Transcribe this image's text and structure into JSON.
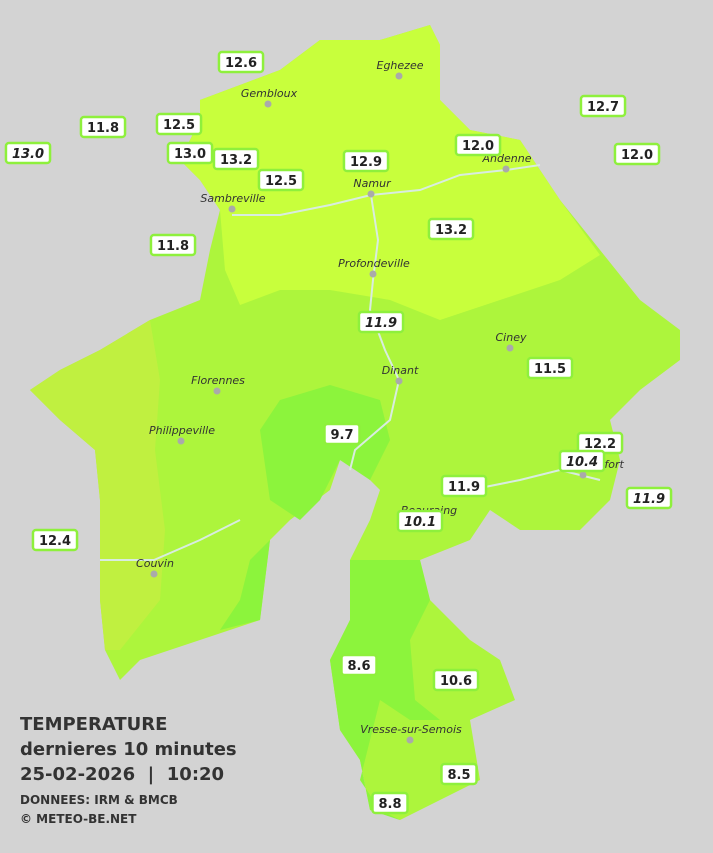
{
  "title": {
    "line1": "TEMPERATURE",
    "line2": "dernieres 10 minutes",
    "line3": "25-02-2026  |  10:20",
    "source": "DONNEES: IRM & BMCB",
    "copyright": "© METEO-BE.NET"
  },
  "cities": [
    "Eghezee",
    "Gembloux",
    "Andenne",
    "Namur",
    "Sambreville",
    "Profondeville",
    "Ciney",
    "Dinant",
    "Florennes",
    "Philippeville",
    "Rochefort",
    "Beauraing",
    "Couvin",
    "Vresse-sur-Semois"
  ],
  "stations": [
    {
      "label": "12.6",
      "italic": false
    },
    {
      "label": "11.8",
      "italic": false
    },
    {
      "label": "12.5",
      "italic": false
    },
    {
      "label": "13.0",
      "italic": true
    },
    {
      "label": "13.0",
      "italic": false
    },
    {
      "label": "13.2",
      "italic": false
    },
    {
      "label": "12.5",
      "italic": false
    },
    {
      "label": "12.9",
      "italic": false
    },
    {
      "label": "12.0",
      "italic": false
    },
    {
      "label": "12.7",
      "italic": false
    },
    {
      "label": "12.0",
      "italic": false
    },
    {
      "label": "11.8",
      "italic": false
    },
    {
      "label": "13.2",
      "italic": false
    },
    {
      "label": "11.9",
      "italic": true
    },
    {
      "label": "11.5",
      "italic": false
    },
    {
      "label": "9.7",
      "italic": false
    },
    {
      "label": "12.2",
      "italic": false
    },
    {
      "label": "10.4",
      "italic": true
    },
    {
      "label": "11.9",
      "italic": false
    },
    {
      "label": "11.9",
      "italic": true
    },
    {
      "label": "10.1",
      "italic": true
    },
    {
      "label": "12.4",
      "italic": false
    },
    {
      "label": "8.6",
      "italic": false
    },
    {
      "label": "10.6",
      "italic": false
    },
    {
      "label": "8.5",
      "italic": false
    },
    {
      "label": "8.8",
      "italic": false
    }
  ]
}
